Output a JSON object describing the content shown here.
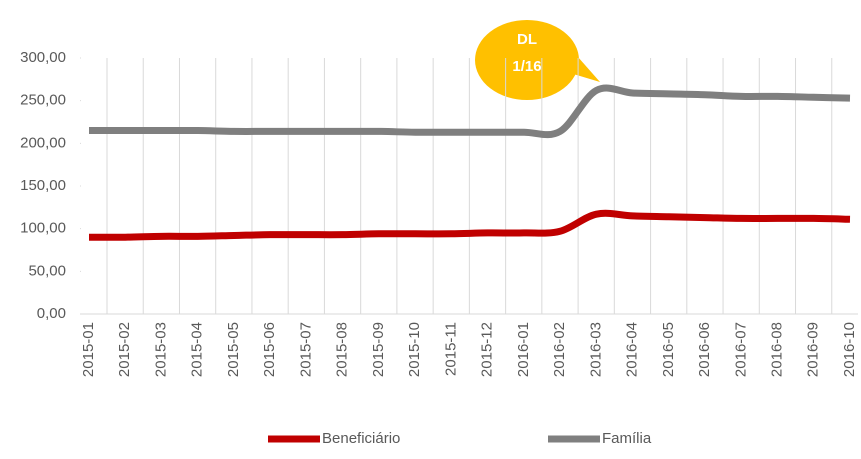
{
  "chart_data": {
    "type": "line",
    "annotation": [
      "DL",
      "1/16"
    ],
    "categories": [
      "2015-01",
      "2015-02",
      "2015-03",
      "2015-04",
      "2015-05",
      "2015-06",
      "2015-07",
      "2015-08",
      "2015-09",
      "2015-10",
      "2015-11",
      "2015-12",
      "2016-01",
      "2016-02",
      "2016-03",
      "2016-04",
      "2016-05",
      "2016-06",
      "2016-07",
      "2016-08",
      "2016-09",
      "2016-10"
    ],
    "series": [
      {
        "name": "Beneficiário",
        "color": "#c00000",
        "values": [
          90,
          90,
          91,
          91,
          92,
          93,
          93,
          93,
          94,
          94,
          94,
          95,
          95,
          97,
          117,
          115,
          114,
          113,
          112,
          112,
          112,
          111
        ]
      },
      {
        "name": "Família",
        "color": "#7f7f7f",
        "values": [
          215,
          215,
          215,
          215,
          214,
          214,
          214,
          214,
          214,
          213,
          213,
          213,
          213,
          214,
          262,
          259,
          258,
          257,
          255,
          255,
          254,
          253
        ]
      }
    ],
    "ylim": [
      0,
      300
    ],
    "yticks": [
      {
        "value": 0,
        "label": "0,00"
      },
      {
        "value": 50,
        "label": "50,00"
      },
      {
        "value": 100,
        "label": "100,00"
      },
      {
        "value": 150,
        "label": "150,00"
      },
      {
        "value": 200,
        "label": "200,00"
      },
      {
        "value": 250,
        "label": "250,00"
      },
      {
        "value": 300,
        "label": "300,00"
      }
    ],
    "grid": true,
    "legend": "bottom"
  }
}
